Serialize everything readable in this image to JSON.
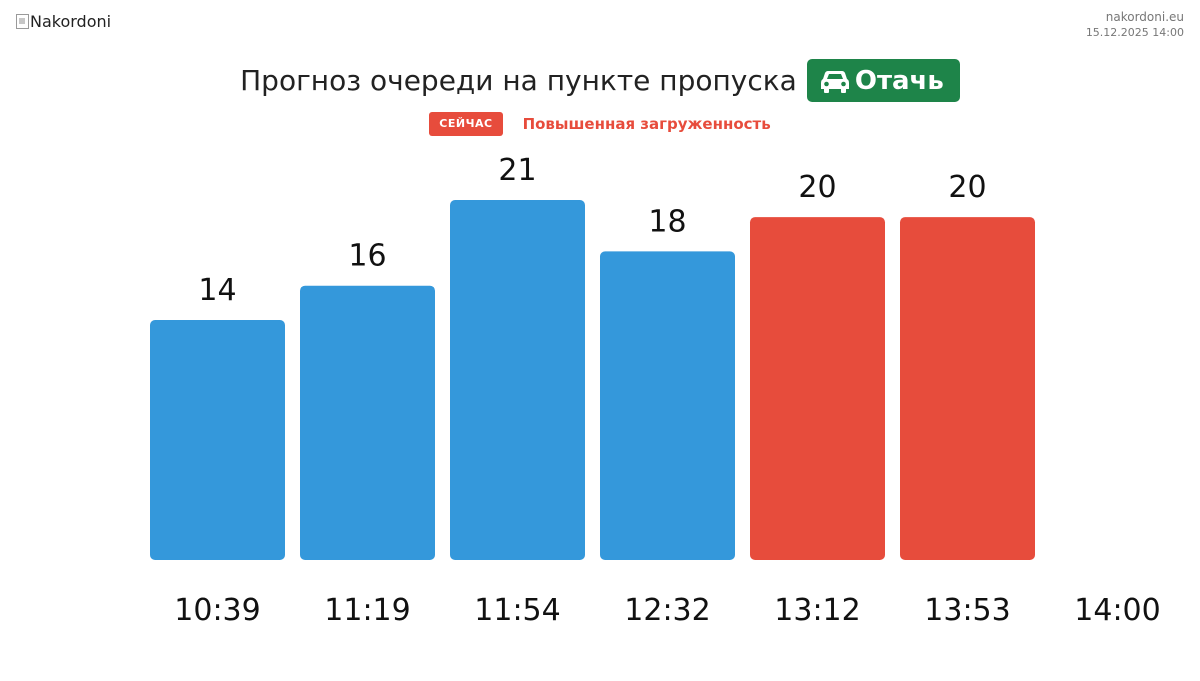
{
  "header": {
    "logo_alt": "Nakordoni",
    "site": "nakordoni.eu",
    "timestamp": "15.12.2025 14:00"
  },
  "heading": {
    "title": "Прогноз очереди на пункте пропуска",
    "checkpoint": "Отачь",
    "vehicle_icon": "car-icon",
    "checkpoint_color": "#1e8449"
  },
  "status": {
    "badge": "СЕЙЧАС",
    "text": "Повышенная загруженность",
    "color": "#e74c3c"
  },
  "chart_data": {
    "type": "bar",
    "categories": [
      "10:39",
      "11:19",
      "11:54",
      "12:32",
      "13:12",
      "13:53"
    ],
    "extra_tick": "14:00",
    "values": [
      14,
      16,
      21,
      18,
      20,
      20
    ],
    "bar_colors": [
      "#3498db",
      "#3498db",
      "#3498db",
      "#3498db",
      "#e74c3c",
      "#e74c3c"
    ],
    "title": "",
    "xlabel": "",
    "ylabel": "",
    "ylim": [
      0,
      21
    ],
    "grid": false,
    "legend": "none"
  }
}
